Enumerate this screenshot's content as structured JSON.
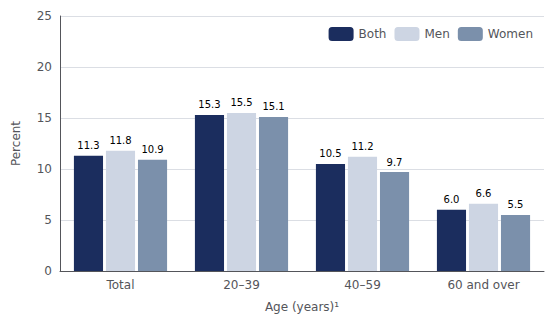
{
  "chart_data": {
    "type": "bar",
    "categories": [
      "Total",
      "20–39",
      "40–59",
      "60 and over"
    ],
    "series": [
      {
        "name": "Both",
        "color": "#1b2d5e",
        "values": [
          11.3,
          15.3,
          10.5,
          6.0
        ],
        "value_labels": [
          "11.3",
          "15.3",
          "10.5",
          "6.0"
        ]
      },
      {
        "name": "Men",
        "color": "#cdd5e3",
        "values": [
          11.8,
          15.5,
          11.2,
          6.6
        ],
        "value_labels": [
          "11.8",
          "15.5",
          "11.2",
          "6.6"
        ]
      },
      {
        "name": "Women",
        "color": "#7b90ab",
        "values": [
          10.9,
          15.1,
          9.7,
          5.5
        ],
        "value_labels": [
          "10.9",
          "15.1",
          "9.7",
          "5.5"
        ]
      }
    ],
    "xlabel": "Age (years)¹",
    "ylabel": "Percent",
    "ylim": [
      0,
      25
    ],
    "yticks": [
      0,
      5,
      10,
      15,
      20,
      25
    ],
    "grid": true,
    "legend": "upper right",
    "data_labels": true
  }
}
